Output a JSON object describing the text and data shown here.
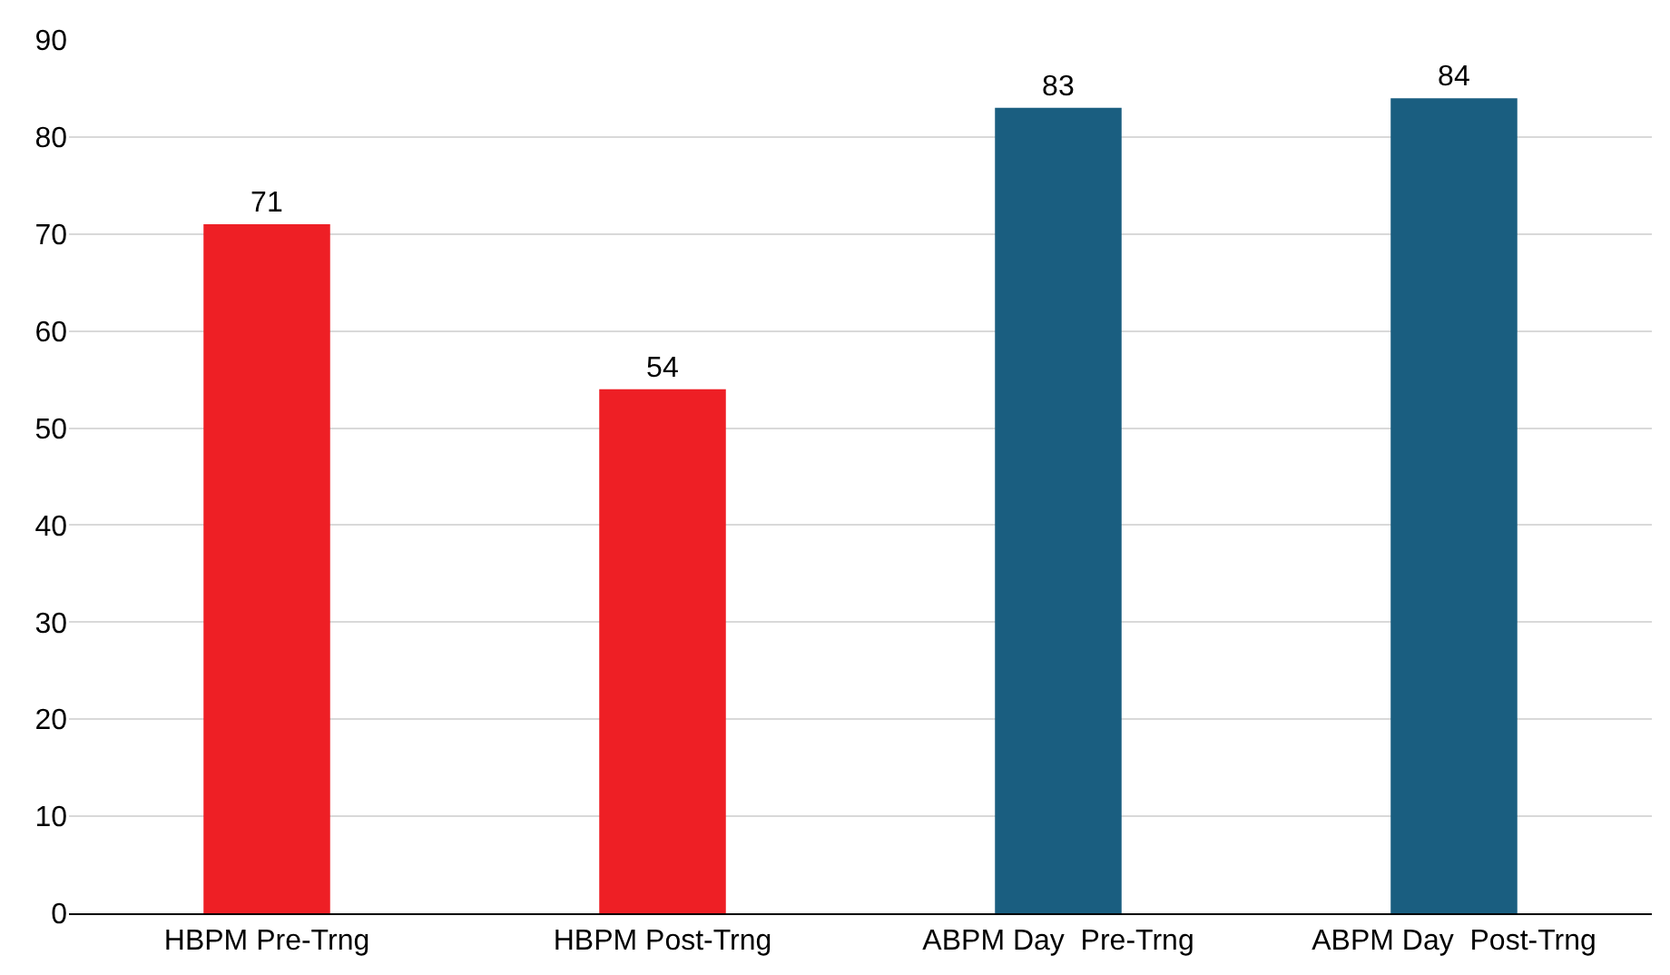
{
  "chart_data": {
    "type": "bar",
    "categories": [
      "HBPM Pre-Trng",
      "HBPM Post-Trng",
      "ABPM Day  Pre-Trng",
      "ABPM Day  Post-Trng"
    ],
    "values": [
      71,
      54,
      83,
      84
    ],
    "colors": [
      "#ee1f25",
      "#ee1f25",
      "#1a5e80",
      "#1a5e80"
    ],
    "ylim": [
      0,
      90
    ],
    "yticks": [
      0,
      10,
      20,
      30,
      40,
      50,
      60,
      70,
      80,
      90
    ],
    "grid": "y",
    "data_labels": true,
    "legend": false
  }
}
